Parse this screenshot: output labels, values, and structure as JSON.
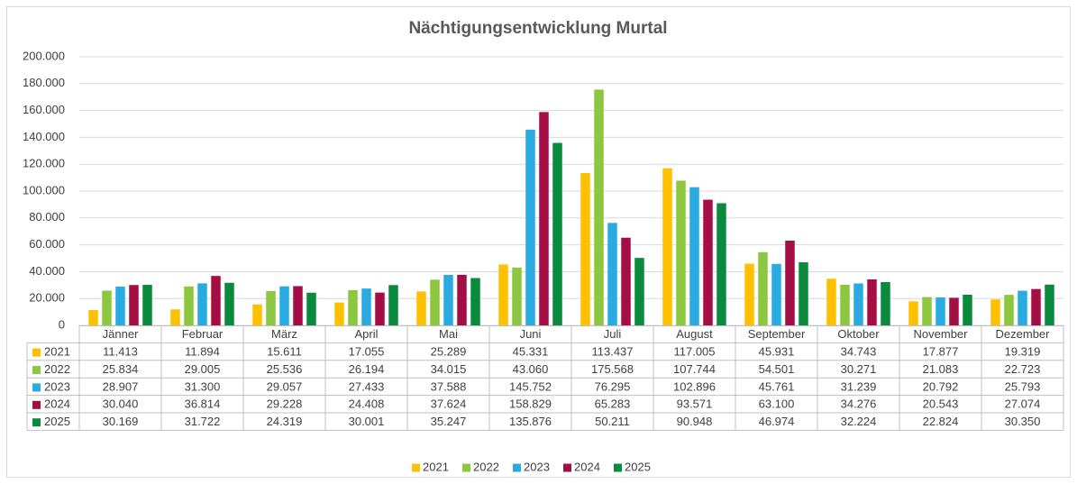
{
  "chart_data": {
    "type": "bar",
    "title": "Nächtigungsentwicklung Murtal",
    "categories": [
      "Jänner",
      "Februar",
      "März",
      "April",
      "Mai",
      "Juni",
      "Juli",
      "August",
      "September",
      "Oktober",
      "November",
      "Dezember"
    ],
    "series": [
      {
        "name": "2021",
        "color": "#ffc000",
        "values": [
          11413,
          11894,
          15611,
          17055,
          25289,
          45331,
          113437,
          117005,
          45931,
          34743,
          17877,
          19319
        ],
        "value_labels": [
          "11.413",
          "11.894",
          "15.611",
          "17.055",
          "25.289",
          "45.331",
          "113.437",
          "117.005",
          "45.931",
          "34.743",
          "17.877",
          "19.319"
        ]
      },
      {
        "name": "2022",
        "color": "#8dc63f",
        "values": [
          25834,
          29005,
          25536,
          26194,
          34015,
          43060,
          175568,
          107744,
          54501,
          30271,
          21083,
          22723
        ],
        "value_labels": [
          "25.834",
          "29.005",
          "25.536",
          "26.194",
          "34.015",
          "43.060",
          "175.568",
          "107.744",
          "54.501",
          "30.271",
          "21.083",
          "22.723"
        ]
      },
      {
        "name": "2023",
        "color": "#29abe2",
        "values": [
          28907,
          31300,
          29057,
          27433,
          37588,
          145752,
          76295,
          102896,
          45761,
          31239,
          20792,
          25793
        ],
        "value_labels": [
          "28.907",
          "31.300",
          "29.057",
          "27.433",
          "37.588",
          "145.752",
          "76.295",
          "102.896",
          "45.761",
          "31.239",
          "20.792",
          "25.793"
        ]
      },
      {
        "name": "2024",
        "color": "#a50d45",
        "values": [
          30040,
          36814,
          29228,
          24408,
          37624,
          158829,
          65283,
          93571,
          63100,
          34276,
          20543,
          27074
        ],
        "value_labels": [
          "30.040",
          "36.814",
          "29.228",
          "24.408",
          "37.624",
          "158.829",
          "65.283",
          "93.571",
          "63.100",
          "34.276",
          "20.543",
          "27.074"
        ]
      },
      {
        "name": "2025",
        "color": "#0a8a3c",
        "values": [
          30169,
          31722,
          24319,
          30001,
          35247,
          135876,
          50211,
          90948,
          46974,
          32224,
          22824,
          30350
        ],
        "value_labels": [
          "30.169",
          "31.722",
          "24.319",
          "30.001",
          "35.247",
          "135.876",
          "50.211",
          "90.948",
          "46.974",
          "32.224",
          "22.824",
          "30.350"
        ]
      }
    ],
    "ylim": [
      0,
      200000
    ],
    "yticks": [
      0,
      {
        "value": 20000,
        "label": "20.000"
      },
      {
        "value": 40000,
        "label": "40.000"
      },
      {
        "value": 60000,
        "label": "60.000"
      },
      {
        "value": 80000,
        "label": "80.000"
      },
      {
        "value": 100000,
        "label": "100.000"
      },
      {
        "value": 120000,
        "label": "120.000"
      },
      {
        "value": 140000,
        "label": "140.000"
      },
      {
        "value": 160000,
        "label": "160.000"
      },
      {
        "value": 180000,
        "label": "180.000"
      },
      {
        "value": 200000,
        "label": "200.000"
      }
    ],
    "grid": true,
    "legend": "bottom"
  }
}
